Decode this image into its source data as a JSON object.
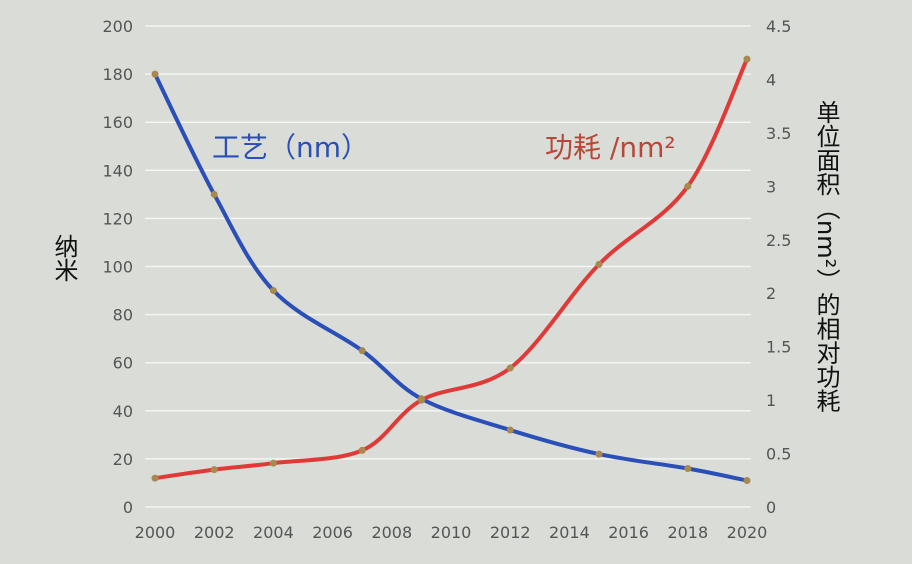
{
  "chart_data": {
    "type": "line",
    "x": [
      2000,
      2002,
      2004,
      2007,
      2009,
      2012,
      2015,
      2018,
      2020
    ],
    "xticks": [
      "2000",
      "2002",
      "2004",
      "2006",
      "2008",
      "2010",
      "2012",
      "2014",
      "2016",
      "2018",
      "2020"
    ],
    "xlim": [
      2000,
      2020
    ],
    "ylim_left": [
      0,
      200
    ],
    "ylim_right": [
      0,
      4.5
    ],
    "yticks_left": [
      "0",
      "20",
      "40",
      "60",
      "80",
      "100",
      "120",
      "140",
      "160",
      "180",
      "200"
    ],
    "yticks_right": [
      "0",
      "0.5",
      "1",
      "1.5",
      "2",
      "2.5",
      "3",
      "3.5",
      "4",
      "4.5"
    ],
    "ylabel_left": "纳米",
    "ylabel_right": "单位面积（nm²）的相对功耗",
    "grid": true,
    "series": [
      {
        "name": "工艺（nm）",
        "axis": "left",
        "color": "#2b4fb8",
        "x": [
          2000,
          2002,
          2004,
          2007,
          2009,
          2012,
          2015,
          2018,
          2020
        ],
        "values": [
          180,
          130,
          90,
          65,
          45,
          32,
          22,
          16,
          11
        ]
      },
      {
        "name": "功耗 /nm²",
        "axis": "right",
        "color": "#e03a38",
        "x": [
          2000,
          2002,
          2004,
          2007,
          2009,
          2012,
          2015,
          2018,
          2020
        ],
        "values": [
          0.27,
          0.35,
          0.41,
          0.53,
          1.0,
          1.3,
          2.27,
          3.0,
          4.19
        ]
      }
    ]
  }
}
